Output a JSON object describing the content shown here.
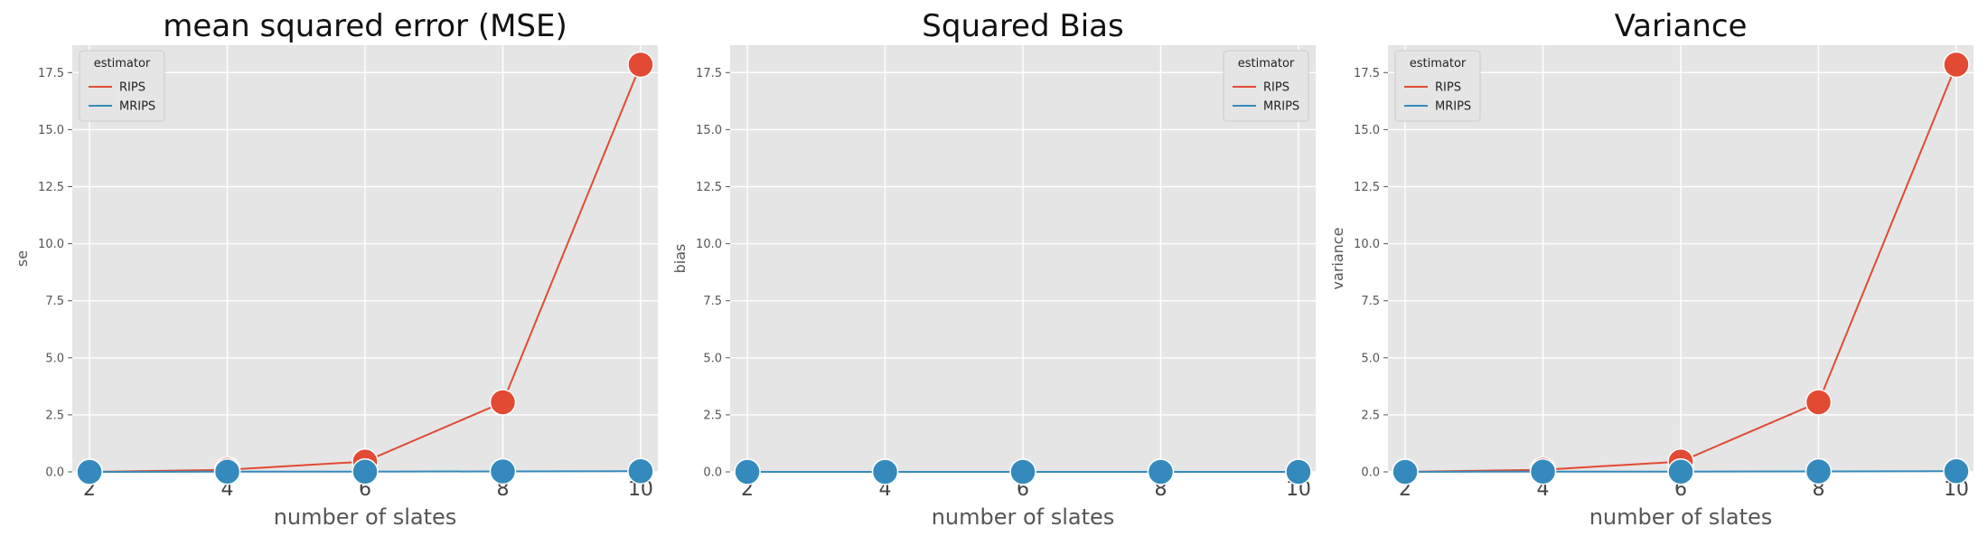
{
  "chart_data": [
    {
      "type": "line",
      "title": "mean squared error (MSE)",
      "xlabel": "number of slates",
      "ylabel": "se",
      "x": [
        2,
        4,
        6,
        8,
        10
      ],
      "xticks": [
        "2",
        "4",
        "6",
        "8",
        "10"
      ],
      "yticks": [
        "0.0",
        "2.5",
        "5.0",
        "7.5",
        "10.0",
        "12.5",
        "15.0",
        "17.5"
      ],
      "xlim": [
        1.75,
        10.25
      ],
      "ylim": [
        0,
        18.7
      ],
      "grid": true,
      "legend": {
        "title": "estimator",
        "placement": "top-left"
      },
      "series": [
        {
          "name": "RIPS",
          "color": "#E24A33",
          "values": [
            0.0,
            0.09,
            0.45,
            3.05,
            17.85
          ]
        },
        {
          "name": "MRIPS",
          "color": "#348ABD",
          "values": [
            0.0,
            0.01,
            0.01,
            0.02,
            0.03
          ]
        }
      ]
    },
    {
      "type": "line",
      "title": "Squared Bias",
      "xlabel": "number of slates",
      "ylabel": "bias",
      "x": [
        2,
        4,
        6,
        8,
        10
      ],
      "xticks": [
        "2",
        "4",
        "6",
        "8",
        "10"
      ],
      "yticks": [
        "0.0",
        "2.5",
        "5.0",
        "7.5",
        "10.0",
        "12.5",
        "15.0",
        "17.5"
      ],
      "xlim": [
        1.75,
        10.25
      ],
      "ylim": [
        0,
        18.7
      ],
      "grid": true,
      "legend": {
        "title": "estimator",
        "placement": "top-right"
      },
      "series": [
        {
          "name": "RIPS",
          "color": "#E24A33",
          "values": [
            0.0,
            0.0,
            0.0,
            0.0,
            0.0
          ]
        },
        {
          "name": "MRIPS",
          "color": "#348ABD",
          "values": [
            0.0,
            0.0,
            0.0,
            0.0,
            0.0
          ]
        }
      ]
    },
    {
      "type": "line",
      "title": "Variance",
      "xlabel": "number of slates",
      "ylabel": "variance",
      "x": [
        2,
        4,
        6,
        8,
        10
      ],
      "xticks": [
        "2",
        "4",
        "6",
        "8",
        "10"
      ],
      "yticks": [
        "0.0",
        "2.5",
        "5.0",
        "7.5",
        "10.0",
        "12.5",
        "15.0",
        "17.5"
      ],
      "xlim": [
        1.75,
        10.25
      ],
      "ylim": [
        0,
        18.7
      ],
      "grid": true,
      "legend": {
        "title": "estimator",
        "placement": "top-left"
      },
      "series": [
        {
          "name": "RIPS",
          "color": "#E24A33",
          "values": [
            0.0,
            0.09,
            0.45,
            3.05,
            17.85
          ]
        },
        {
          "name": "MRIPS",
          "color": "#348ABD",
          "values": [
            0.0,
            0.01,
            0.01,
            0.02,
            0.03
          ]
        }
      ]
    }
  ]
}
